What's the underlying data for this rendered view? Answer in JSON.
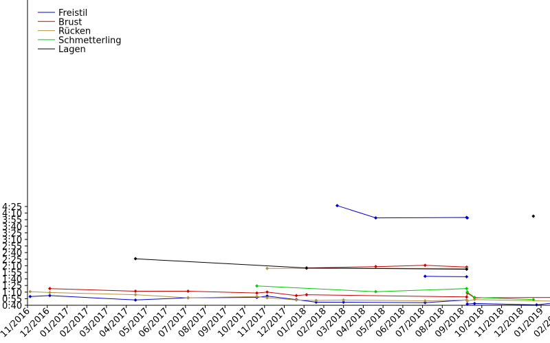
{
  "chart_data": {
    "type": "line",
    "title": "",
    "xlabel": "",
    "ylabel": "",
    "x_axis": {
      "kind": "date",
      "range": [
        "2016-11-01",
        "2019-02-01"
      ],
      "tick_labels": [
        "11/2016",
        "12/2016",
        "01/2017",
        "02/2017",
        "03/2017",
        "04/2017",
        "05/2017",
        "06/2017",
        "07/2017",
        "08/2017",
        "09/2017",
        "10/2017",
        "11/2017",
        "12/2017",
        "01/2018",
        "02/2018",
        "03/2018",
        "04/2018",
        "05/2018",
        "06/2018",
        "07/2018",
        "08/2018",
        "09/2018",
        "10/2018",
        "11/2018",
        "12/2018",
        "01/2019",
        "02/2019"
      ]
    },
    "y_axis": {
      "kind": "time_m_ss",
      "range": [
        "0:40",
        "4:30"
      ],
      "tick_labels": [
        "0:40",
        "0:55",
        "1:10",
        "1:25",
        "1:40",
        "1:55",
        "2:10",
        "2:25",
        "2:40",
        "2:55",
        "3:10",
        "3:25",
        "3:40",
        "3:55",
        "4:10",
        "4:25"
      ]
    },
    "grid": false,
    "legend_position": "top-left",
    "series": [
      {
        "name": "Freistil",
        "color": "#0000cc",
        "segments": [
          [
            [
              "2016-11-05",
              "1:00"
            ],
            [
              "2016-12-05",
              "1:02"
            ],
            [
              "2017-04-15",
              "0:52"
            ],
            [
              "2017-07-05",
              "0:57"
            ],
            [
              "2017-10-20",
              "0:58"
            ],
            [
              "2017-11-05",
              "1:01"
            ],
            [
              "2017-12-20",
              "0:53"
            ],
            [
              "2018-01-20",
              "0:47"
            ],
            [
              "2018-03-01",
              "0:47"
            ],
            [
              "2018-07-05",
              "0:46"
            ],
            [
              "2018-09-08",
              "0:52"
            ],
            [
              "2018-09-09",
              "0:43"
            ],
            [
              "2018-09-20",
              "0:44"
            ],
            [
              "2018-12-25",
              "0:41"
            ],
            [
              "2019-02-01",
              "0:47"
            ]
          ],
          [
            [
              "2018-02-20",
              "4:27"
            ],
            [
              "2018-04-20",
              "3:59"
            ],
            [
              "2018-09-08",
              "4:00"
            ],
            [
              "2018-09-09",
              "3:59"
            ]
          ],
          [
            [
              "2018-07-05",
              "1:46"
            ],
            [
              "2018-09-08",
              "1:45"
            ]
          ]
        ]
      },
      {
        "name": "Brust",
        "color": "#cc0000",
        "segments": [
          [
            [
              "2016-12-05",
              "1:18"
            ],
            [
              "2017-04-15",
              "1:12"
            ],
            [
              "2017-07-05",
              "1:12"
            ],
            [
              "2017-10-20",
              "1:08"
            ],
            [
              "2017-11-05",
              "1:10"
            ],
            [
              "2017-12-20",
              "1:02"
            ],
            [
              "2018-01-05",
              "1:04"
            ],
            [
              "2018-09-08",
              "0:59"
            ],
            [
              "2018-09-09",
              "1:08"
            ],
            [
              "2018-09-20",
              "0:57"
            ],
            [
              "2019-02-01",
              "0:58"
            ]
          ],
          [
            [
              "2018-01-05",
              "2:05"
            ],
            [
              "2018-04-20",
              "2:08"
            ],
            [
              "2018-07-05",
              "2:11"
            ],
            [
              "2018-09-08",
              "2:07"
            ]
          ]
        ]
      },
      {
        "name": "Rücken",
        "color": "#b09040",
        "segments": [
          [
            [
              "2016-11-05",
              "1:11"
            ],
            [
              "2016-12-05",
              "1:09"
            ],
            [
              "2017-04-15",
              "1:04"
            ],
            [
              "2017-07-05",
              "0:57"
            ],
            [
              "2017-10-20",
              "1:00"
            ],
            [
              "2017-11-05",
              "0:57"
            ],
            [
              "2017-12-20",
              "0:52"
            ],
            [
              "2018-01-20",
              "0:51"
            ],
            [
              "2018-03-01",
              "0:52"
            ],
            [
              "2018-07-05",
              "0:50"
            ],
            [
              "2018-09-08",
              "0:52"
            ],
            [
              "2018-09-09",
              "0:50"
            ],
            [
              "2018-09-20",
              "0:53"
            ],
            [
              "2019-02-01",
              "0:49"
            ]
          ],
          [
            [
              "2017-11-05",
              "2:04"
            ],
            [
              "2018-01-05",
              "2:04"
            ],
            [
              "2018-09-08",
              "2:04"
            ]
          ]
        ]
      },
      {
        "name": "Schmetterling",
        "color": "#00cc00",
        "segments": [
          [
            [
              "2017-10-20",
              "1:24"
            ],
            [
              "2018-04-20",
              "1:11"
            ],
            [
              "2018-09-08",
              "1:18"
            ],
            [
              "2018-09-09",
              "1:10"
            ],
            [
              "2018-09-20",
              "0:58"
            ],
            [
              "2018-12-20",
              "0:53"
            ]
          ]
        ]
      },
      {
        "name": "Lagen",
        "color": "#000000",
        "segments": [
          [
            [
              "2017-04-15",
              "2:26"
            ],
            [
              "2018-01-05",
              "2:05"
            ],
            [
              "2018-09-08",
              "2:02"
            ]
          ],
          [
            [
              "2018-12-20",
              "4:03"
            ]
          ]
        ]
      }
    ]
  }
}
